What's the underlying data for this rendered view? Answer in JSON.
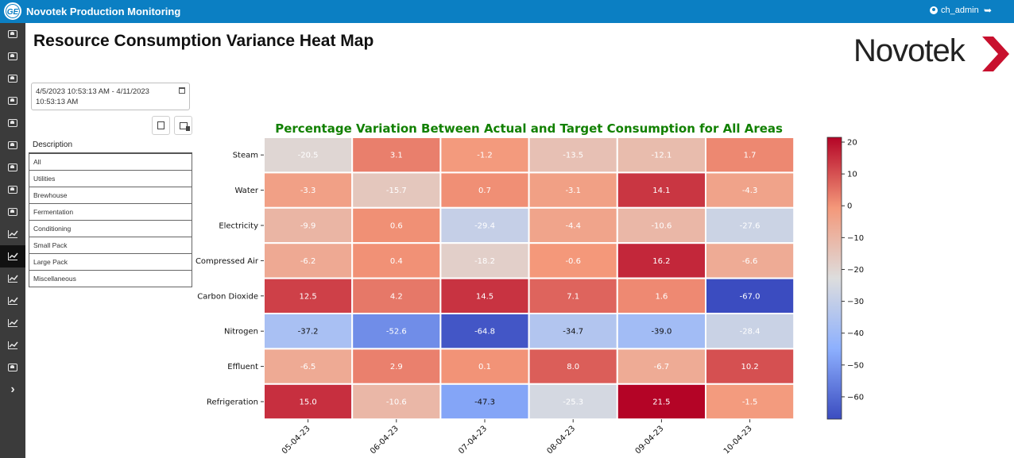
{
  "header": {
    "logo_text": "GE",
    "title": "Novotek Production Monitoring",
    "username": "ch_admin"
  },
  "sidebar": {
    "items": [
      {
        "icon": "monitor-icon"
      },
      {
        "icon": "monitor-icon"
      },
      {
        "icon": "monitor-icon"
      },
      {
        "icon": "monitor-icon"
      },
      {
        "icon": "monitor-icon"
      },
      {
        "icon": "monitor-icon"
      },
      {
        "icon": "monitor-icon"
      },
      {
        "icon": "monitor-icon"
      },
      {
        "icon": "monitor-icon"
      },
      {
        "icon": "chart-icon"
      },
      {
        "icon": "chart-icon",
        "active": true
      },
      {
        "icon": "chart-icon"
      },
      {
        "icon": "chart-icon"
      },
      {
        "icon": "chart-icon"
      },
      {
        "icon": "chart-icon"
      },
      {
        "icon": "monitor-icon"
      },
      {
        "icon": "chevron-right-icon"
      }
    ]
  },
  "page": {
    "title": "Resource Consumption Variance Heat Map",
    "brand": "Novotek",
    "date_range": "4/5/2023 10:53:13 AM - 4/11/2023 10:53:13 AM"
  },
  "description_table": {
    "header": "Description",
    "rows": [
      "All",
      "Utilities",
      "Brewhouse",
      "Fermentation",
      "Conditioning",
      "Small Pack",
      "Large Pack",
      "Miscellaneous"
    ]
  },
  "colors": {
    "topbar": "#0b7fc3",
    "sidebar": "#3b3b3b",
    "title_green": "#118000"
  },
  "chart_data": {
    "type": "heatmap",
    "title": "Percentage Variation Between Actual and Target Consumption for All Areas",
    "x": [
      "05-04-23",
      "06-04-23",
      "07-04-23",
      "08-04-23",
      "09-04-23",
      "10-04-23"
    ],
    "y": [
      "Steam",
      "Water",
      "Electricity",
      "Compressed Air",
      "Carbon Dioxide",
      "Nitrogen",
      "Effluent",
      "Refrigeration"
    ],
    "values": [
      [
        -20.5,
        3.1,
        -1.2,
        -13.5,
        -12.1,
        1.7
      ],
      [
        -3.3,
        -15.7,
        0.7,
        -3.1,
        14.1,
        -4.3
      ],
      [
        -9.9,
        0.6,
        -29.4,
        -4.4,
        -10.6,
        -27.6
      ],
      [
        -6.2,
        0.4,
        -18.2,
        -0.6,
        16.2,
        -6.6
      ],
      [
        12.5,
        4.2,
        14.5,
        7.1,
        1.6,
        -67.0
      ],
      [
        -37.2,
        -52.6,
        -64.8,
        -34.7,
        -39.0,
        -28.4
      ],
      [
        -6.5,
        2.9,
        0.1,
        8.0,
        -6.7,
        10.2
      ],
      [
        15.0,
        -10.6,
        -47.3,
        -25.3,
        21.5,
        -1.5
      ]
    ],
    "colormap": "coolwarm",
    "vmin": -67.0,
    "vmax": 21.5,
    "colorbar_ticks": [
      20,
      10,
      0,
      -10,
      -20,
      -30,
      -40,
      -50,
      -60
    ],
    "colorbar_ticklabels": [
      "20",
      "10",
      "0",
      "−10",
      "−20",
      "−30",
      "−40",
      "−50",
      "−60"
    ]
  }
}
